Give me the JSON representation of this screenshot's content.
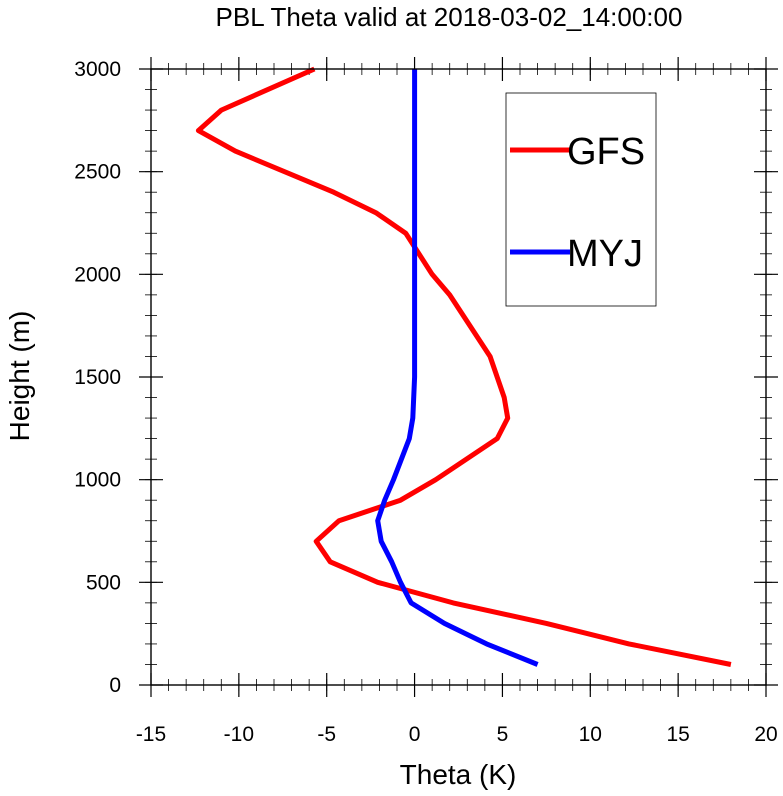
{
  "chart_data": {
    "type": "line",
    "title": "PBL Theta valid at 2018-03-02_14:00:00",
    "xlabel": "Theta (K)",
    "ylabel": "Height (m)",
    "xlim": [
      -15,
      20
    ],
    "ylim": [
      0,
      3000
    ],
    "xticks": [
      -15,
      -10,
      -5,
      0,
      5,
      10,
      15,
      20
    ],
    "yticks": [
      0,
      500,
      1000,
      1500,
      2000,
      2500,
      3000
    ],
    "xtick_labels": [
      "-15",
      "-10",
      "-5",
      "0",
      "5",
      "10",
      "15",
      "20"
    ],
    "ytick_labels": [
      "0",
      "500",
      "1000",
      "1500",
      "2000",
      "2500",
      "3000"
    ],
    "grid": false,
    "legend_position": "top-right",
    "series": [
      {
        "name": "GFS",
        "color": "#ff0000",
        "x": [
          18.0,
          12.2,
          7.5,
          2.2,
          -2.1,
          -4.8,
          -5.6,
          -4.3,
          -0.8,
          1.2,
          4.7,
          5.3,
          5.1,
          4.3,
          2.0,
          1.0,
          -0.5,
          -2.2,
          -4.6,
          -10.2,
          -12.3,
          -11.0,
          -5.7
        ],
        "y": [
          100,
          200,
          300,
          400,
          500,
          600,
          700,
          800,
          900,
          1000,
          1200,
          1300,
          1400,
          1600,
          1900,
          2000,
          2200,
          2300,
          2400,
          2600,
          2700,
          2800,
          3000
        ]
      },
      {
        "name": "MYJ",
        "color": "#0000ff",
        "x": [
          7.0,
          4.1,
          1.7,
          -0.2,
          -0.8,
          -1.3,
          -1.9,
          -2.1,
          -1.7,
          -1.2,
          -0.3,
          -0.1,
          0.0,
          0.0,
          0.0,
          0.0,
          0.0
        ],
        "y": [
          100,
          200,
          300,
          400,
          500,
          600,
          700,
          800,
          900,
          1000,
          1200,
          1300,
          1500,
          1800,
          2200,
          2600,
          3000
        ]
      }
    ]
  }
}
